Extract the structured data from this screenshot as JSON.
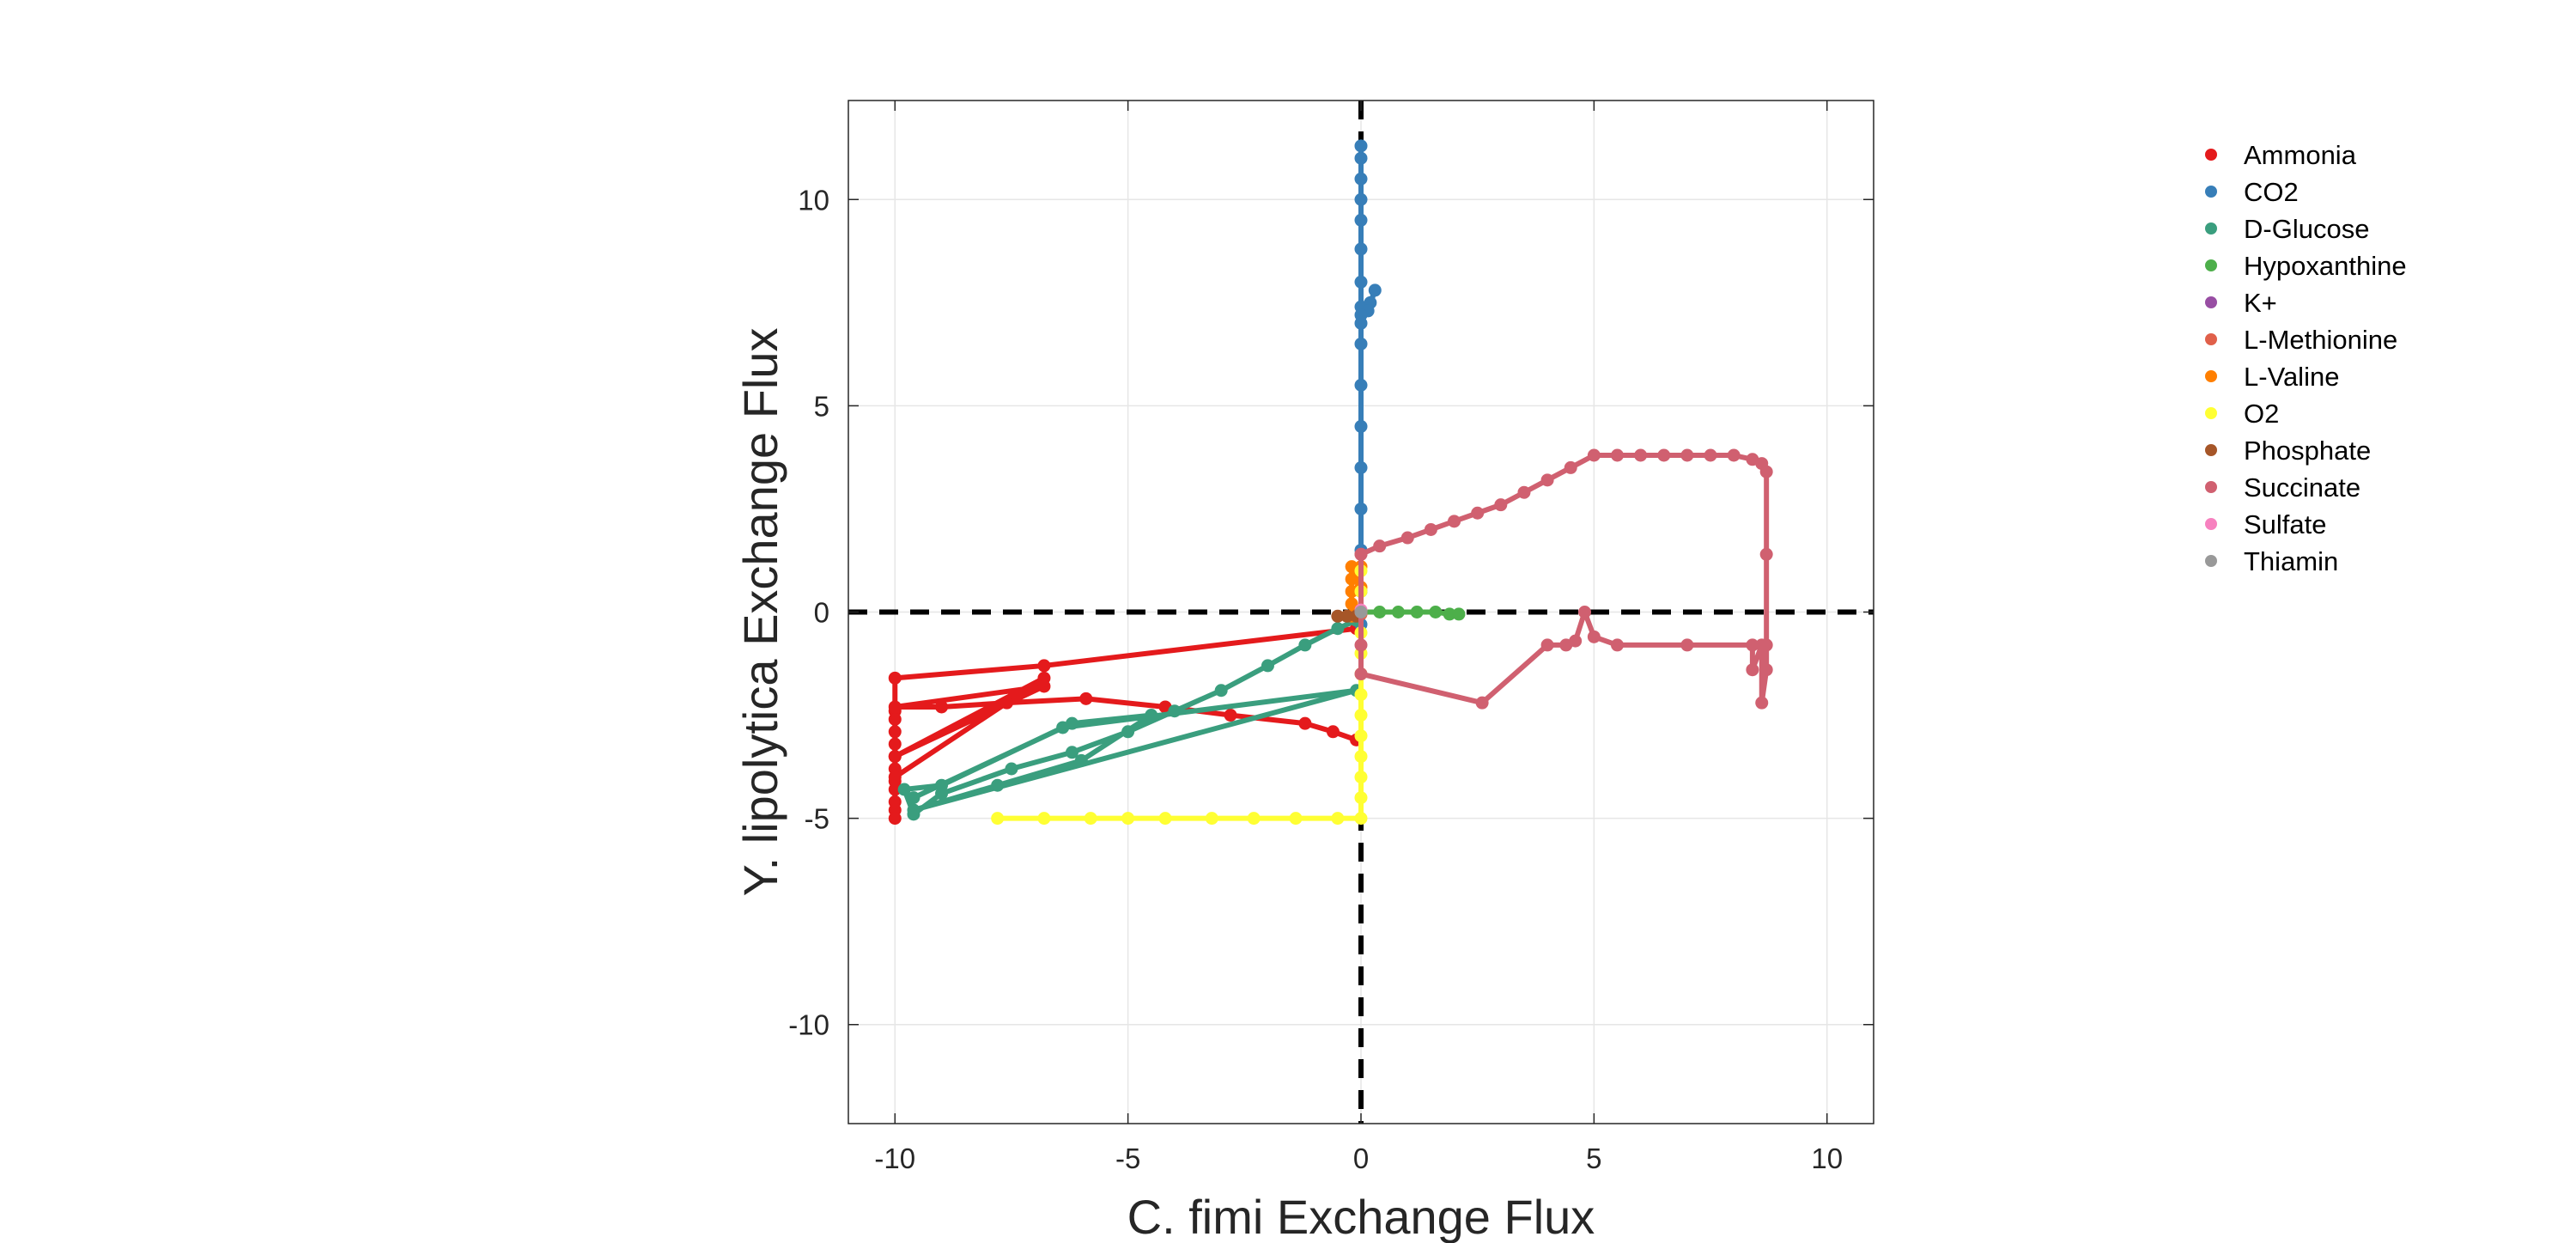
{
  "chart_data": {
    "type": "line",
    "xlabel": "C. fimi Exchange Flux",
    "ylabel": "Y. lipolytica Exchange Flux",
    "xlim": [
      -11,
      11
    ],
    "ylim": [
      -12.4,
      12.4
    ],
    "xticks": [
      -10,
      -5,
      0,
      5,
      10
    ],
    "yticks": [
      -10,
      -5,
      0,
      5,
      10
    ],
    "grid": true,
    "legend_position": "right",
    "reference_lines": {
      "x": 0,
      "y": 0,
      "style": "dashed",
      "color": "#000000"
    },
    "series": [
      {
        "name": "Ammonia",
        "color": "#e41a1c",
        "points": [
          [
            -0.1,
            -0.4
          ],
          [
            -6.8,
            -1.3
          ],
          [
            -10,
            -1.6
          ],
          [
            -10,
            -2.4
          ],
          [
            -10,
            -2.6
          ],
          [
            -10,
            -2.9
          ],
          [
            -10,
            -3.2
          ],
          [
            -10,
            -3.5
          ],
          [
            -10,
            -3.8
          ],
          [
            -10,
            -4.1
          ],
          [
            -10,
            -4.3
          ],
          [
            -10,
            -4.6
          ],
          [
            -10,
            -4.8
          ],
          [
            -10,
            -5.0
          ],
          [
            -10,
            -4.0
          ],
          [
            -6.8,
            -1.6
          ],
          [
            -10,
            -3.5
          ],
          [
            -6.8,
            -1.8
          ],
          [
            -10,
            -2.3
          ],
          [
            -9.0,
            -2.3
          ],
          [
            -7.6,
            -2.2
          ],
          [
            -5.9,
            -2.1
          ],
          [
            -4.2,
            -2.3
          ],
          [
            -2.8,
            -2.5
          ],
          [
            -1.2,
            -2.7
          ],
          [
            -0.6,
            -2.9
          ],
          [
            -0.1,
            -3.1
          ]
        ]
      },
      {
        "name": "CO2",
        "color": "#377eb8",
        "points": [
          [
            0,
            -0.3
          ],
          [
            0,
            0.5
          ],
          [
            0,
            1.5
          ],
          [
            0,
            2.5
          ],
          [
            0,
            3.5
          ],
          [
            0,
            4.5
          ],
          [
            0,
            5.5
          ],
          [
            0,
            6.5
          ],
          [
            0,
            7.0
          ],
          [
            0,
            7.4
          ],
          [
            0.2,
            7.5
          ],
          [
            0.3,
            7.8
          ],
          [
            0.15,
            7.3
          ],
          [
            0,
            7.2
          ],
          [
            0,
            8.0
          ],
          [
            0,
            8.8
          ],
          [
            0,
            9.5
          ],
          [
            0,
            10.0
          ],
          [
            0,
            10.5
          ],
          [
            0,
            11.0
          ],
          [
            0,
            11.3
          ]
        ]
      },
      {
        "name": "D-Glucose",
        "color": "#3a9e7e",
        "points": [
          [
            -0.1,
            -0.2
          ],
          [
            -0.5,
            -0.4
          ],
          [
            -1.2,
            -0.8
          ],
          [
            -2.0,
            -1.3
          ],
          [
            -3.0,
            -1.9
          ],
          [
            -4.0,
            -2.4
          ],
          [
            -5.0,
            -2.9
          ],
          [
            -6.2,
            -3.4
          ],
          [
            -7.5,
            -3.8
          ],
          [
            -9.0,
            -4.4
          ],
          [
            -9.6,
            -4.9
          ],
          [
            -9.8,
            -4.3
          ],
          [
            -9.0,
            -4.2
          ],
          [
            -6.4,
            -2.8
          ],
          [
            -0.1,
            -1.9
          ],
          [
            -9.6,
            -4.8
          ],
          [
            -7.8,
            -4.2
          ],
          [
            -6.0,
            -3.6
          ],
          [
            -4.5,
            -2.5
          ],
          [
            -6.2,
            -2.7
          ],
          [
            -9.6,
            -4.5
          ]
        ]
      },
      {
        "name": "Hypoxanthine",
        "color": "#4daf4a",
        "points": [
          [
            0,
            0
          ],
          [
            0.4,
            0
          ],
          [
            0.8,
            0
          ],
          [
            1.2,
            0
          ],
          [
            1.6,
            0
          ],
          [
            1.9,
            -0.05
          ],
          [
            2.1,
            -0.05
          ]
        ]
      },
      {
        "name": "K+",
        "color": "#984ea3",
        "points": [
          [
            0,
            -0.02
          ]
        ]
      },
      {
        "name": "L-Methionine",
        "color": "#e0604a",
        "points": [
          [
            0,
            -0.05
          ]
        ]
      },
      {
        "name": "L-Valine",
        "color": "#ff7f00",
        "points": [
          [
            -0.2,
            -0.1
          ],
          [
            -0.2,
            0.2
          ],
          [
            -0.2,
            0.5
          ],
          [
            -0.2,
            0.8
          ],
          [
            -0.2,
            1.1
          ],
          [
            0,
            0.6
          ],
          [
            0,
            1.1
          ]
        ]
      },
      {
        "name": "O2",
        "color": "#ffff33",
        "points": [
          [
            -7.8,
            -5.0
          ],
          [
            -6.8,
            -5.0
          ],
          [
            -5.8,
            -5.0
          ],
          [
            -5.0,
            -5.0
          ],
          [
            -4.2,
            -5.0
          ],
          [
            -3.2,
            -5.0
          ],
          [
            -2.3,
            -5.0
          ],
          [
            -1.4,
            -5.0
          ],
          [
            -0.5,
            -5.0
          ],
          [
            0,
            -5.0
          ],
          [
            0,
            -4.5
          ],
          [
            0,
            -4.0
          ],
          [
            0,
            -3.5
          ],
          [
            0,
            -3.0
          ],
          [
            0,
            -2.5
          ],
          [
            0,
            -2.0
          ],
          [
            0,
            -1.5
          ],
          [
            0,
            -1.0
          ],
          [
            0,
            -0.5
          ],
          [
            0,
            0
          ],
          [
            0,
            0.5
          ],
          [
            0,
            1.0
          ]
        ]
      },
      {
        "name": "Phosphate",
        "color": "#a65628",
        "points": [
          [
            -0.5,
            -0.1
          ],
          [
            -0.3,
            -0.1
          ],
          [
            -0.1,
            -0.1
          ]
        ]
      },
      {
        "name": "Succinate",
        "color": "#d06070",
        "points": [
          [
            0,
            1.4
          ],
          [
            0.4,
            1.6
          ],
          [
            1.0,
            1.8
          ],
          [
            1.5,
            2.0
          ],
          [
            2.0,
            2.2
          ],
          [
            2.5,
            2.4
          ],
          [
            3.0,
            2.6
          ],
          [
            3.5,
            2.9
          ],
          [
            4.0,
            3.2
          ],
          [
            4.5,
            3.5
          ],
          [
            5.0,
            3.8
          ],
          [
            5.5,
            3.8
          ],
          [
            6.0,
            3.8
          ],
          [
            6.5,
            3.8
          ],
          [
            7.0,
            3.8
          ],
          [
            7.5,
            3.8
          ],
          [
            8.0,
            3.8
          ],
          [
            8.4,
            3.7
          ],
          [
            8.6,
            3.6
          ],
          [
            8.7,
            3.4
          ],
          [
            8.7,
            1.4
          ],
          [
            8.7,
            -0.8
          ],
          [
            8.7,
            -1.4
          ],
          [
            8.6,
            -2.2
          ],
          [
            8.6,
            -0.8
          ],
          [
            8.4,
            -1.4
          ],
          [
            8.4,
            -0.8
          ],
          [
            7.0,
            -0.8
          ],
          [
            5.5,
            -0.8
          ],
          [
            5.0,
            -0.6
          ],
          [
            4.8,
            0
          ],
          [
            4.6,
            -0.7
          ],
          [
            4.4,
            -0.8
          ],
          [
            4.0,
            -0.8
          ],
          [
            2.6,
            -2.2
          ],
          [
            0,
            -1.5
          ],
          [
            0,
            -0.8
          ],
          [
            0,
            0
          ],
          [
            0,
            1.4
          ]
        ]
      },
      {
        "name": "Sulfate",
        "color": "#f781bf",
        "points": [
          [
            0,
            0.05
          ]
        ]
      },
      {
        "name": "Thiamin",
        "color": "#999999",
        "points": [
          [
            0,
            0
          ]
        ]
      }
    ]
  }
}
